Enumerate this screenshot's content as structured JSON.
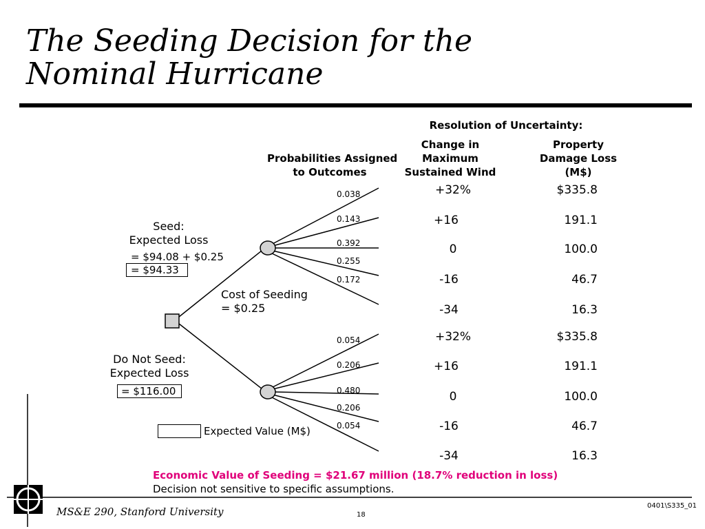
{
  "slide": {
    "title_line1": "The Seeding Decision for the",
    "title_line2": "Nominal Hurricane"
  },
  "headers": {
    "resolution": "Resolution of Uncertainty:",
    "probabilities_line1": "Probabilities Assigned",
    "probabilities_line2": "to Outcomes",
    "wind_line1": "Change in",
    "wind_line2": "Maximum",
    "wind_line3": "Sustained Wind",
    "damage_line1": "Property",
    "damage_line2": "Damage Loss",
    "damage_line3": "(M$)"
  },
  "seed_branch": {
    "label_line1": "Seed:",
    "label_line2": "Expected Loss",
    "calc": "= $94.08 + $0.25",
    "result": "= $94.33",
    "cost_line1": "Cost of Seeding",
    "cost_line2": "= $0.25",
    "probabilities": [
      "0.038",
      "0.143",
      "0.392",
      "0.255",
      "0.172"
    ],
    "wind": [
      "+32%",
      "+16",
      "0",
      "-16",
      "-34"
    ],
    "damage": [
      "$335.8",
      "191.1",
      "100.0",
      "46.7",
      "16.3"
    ]
  },
  "no_seed_branch": {
    "label_line1": "Do Not Seed:",
    "label_line2": "Expected Loss",
    "result": "= $116.00",
    "probabilities": [
      "0.054",
      "0.206",
      "0.480",
      "0.206",
      "0.054"
    ],
    "wind": [
      "+32%",
      "+16",
      "0",
      "-16",
      "-34"
    ],
    "damage": [
      "$335.8",
      "191.1",
      "100.0",
      "46.7",
      "16.3"
    ]
  },
  "legend": {
    "label": "Expected Value (M$)"
  },
  "conclusion": {
    "line1": "Economic Value of Seeding = $21.67 million (18.7% reduction in loss)",
    "line2": "Decision not sensitive to specific assumptions."
  },
  "footer": {
    "course": "MS&E 290, Stanford University",
    "page": "18",
    "code": "0401\\S335_01"
  },
  "colors": {
    "highlight": "#e0007a",
    "node_fill": "#d3d3d3"
  }
}
